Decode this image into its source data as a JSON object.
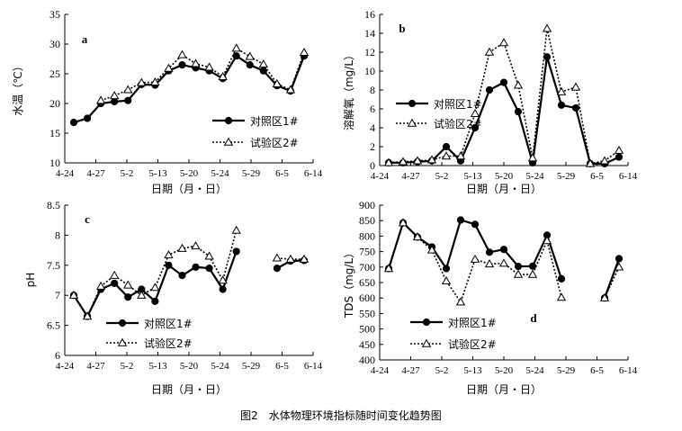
{
  "caption": "图2　水体物理环境指标随时间变化趋势图",
  "chart_data": [
    {
      "id": "a",
      "type": "line",
      "panel_label": "a",
      "xlabel": "日期（月・日）",
      "ylabel": "水温（℃）",
      "ylim": [
        10,
        35
      ],
      "yticks": [
        10,
        15,
        20,
        25,
        30,
        35
      ],
      "xticks": [
        "4-24",
        "4-27",
        "5-2",
        "5-13",
        "5-20",
        "5-24",
        "5-29",
        "6-5",
        "6-14"
      ],
      "legend_position": "middle-right",
      "grid": false,
      "series": [
        {
          "name": "对照区1#",
          "style": "solid",
          "marker": "circle",
          "values": [
            16.8,
            17.5,
            20.0,
            20.3,
            20.5,
            23.2,
            23.1,
            25.5,
            26.5,
            26.0,
            25.5,
            24.2,
            28.0,
            26.5,
            25.5,
            23.0,
            22.1,
            28.0
          ]
        },
        {
          "name": "试验区2#",
          "style": "dotted",
          "marker": "triangle",
          "values": [
            null,
            null,
            20.5,
            21.3,
            22.3,
            23.5,
            23.6,
            25.9,
            28.2,
            26.7,
            26.1,
            24.5,
            29.3,
            27.9,
            26.6,
            23.3,
            22.3,
            28.6
          ]
        }
      ]
    },
    {
      "id": "b",
      "type": "line",
      "panel_label": "b",
      "xlabel": "日期（月・日）",
      "ylabel": "溶解氧（mg/L）",
      "ylim": [
        0,
        16
      ],
      "yticks": [
        0,
        2,
        4,
        6,
        8,
        10,
        12,
        14,
        16
      ],
      "xticks": [
        "4-24",
        "4-27",
        "5-2",
        "5-13",
        "5-20",
        "5-24",
        "5-29",
        "6-5",
        "6-14"
      ],
      "legend_position": "middle-left",
      "grid": false,
      "series": [
        {
          "name": "对照区1#",
          "style": "solid",
          "marker": "circle",
          "values": [
            0.3,
            0.3,
            0.4,
            0.5,
            2.0,
            0.5,
            4.0,
            8.0,
            8.8,
            5.7,
            0.3,
            11.5,
            6.4,
            6.1,
            0.2,
            0.2,
            0.9
          ]
        },
        {
          "name": "试验区2#",
          "style": "dotted",
          "marker": "triangle",
          "values": [
            0.3,
            0.4,
            0.5,
            0.6,
            1.0,
            1.0,
            5.5,
            12.0,
            13.0,
            8.5,
            0.8,
            14.5,
            7.8,
            8.3,
            0.2,
            0.5,
            1.6
          ]
        }
      ]
    },
    {
      "id": "c",
      "type": "line",
      "panel_label": "c",
      "xlabel": "日期（月・日）",
      "ylabel": "pH",
      "ylim": [
        6,
        8.5
      ],
      "yticks": [
        6,
        6.5,
        7,
        7.5,
        8,
        8.5
      ],
      "xticks": [
        "4-24",
        "4-27",
        "5-2",
        "5-13",
        "5-20",
        "5-24",
        "5-29",
        "6-5",
        "6-14"
      ],
      "legend_position": "bottom-left",
      "grid": false,
      "series": [
        {
          "name": "对照区1#",
          "style": "solid",
          "marker": "circle",
          "values": [
            7.0,
            6.65,
            7.1,
            7.2,
            6.97,
            7.1,
            6.9,
            7.5,
            7.33,
            7.47,
            7.45,
            7.1,
            7.73,
            null,
            null,
            7.45,
            7.57,
            7.58
          ]
        },
        {
          "name": "试验区2#",
          "style": "dotted",
          "marker": "triangle",
          "values": [
            7.0,
            6.65,
            7.15,
            7.33,
            7.17,
            7.0,
            7.13,
            7.67,
            7.78,
            7.82,
            7.65,
            7.25,
            8.08,
            null,
            null,
            7.62,
            7.6,
            7.6
          ]
        }
      ]
    },
    {
      "id": "d",
      "type": "line",
      "panel_label": "d",
      "xlabel": "日期（月・日）",
      "ylabel": "TDS（mg/L）",
      "ylim": [
        400,
        900
      ],
      "yticks": [
        400,
        450,
        500,
        550,
        600,
        650,
        700,
        750,
        800,
        850,
        900
      ],
      "xticks": [
        "4-24",
        "4-27",
        "5-2",
        "5-13",
        "5-20",
        "5-24",
        "5-29",
        "6-5",
        "6-14"
      ],
      "legend_position": "bottom-left",
      "grid": false,
      "series": [
        {
          "name": "对照区1#",
          "style": "solid",
          "marker": "circle",
          "values": [
            695,
            843,
            797,
            765,
            695,
            852,
            838,
            748,
            757,
            702,
            703,
            803,
            662,
            null,
            null,
            600,
            727
          ]
        },
        {
          "name": "试验区2#",
          "style": "dotted",
          "marker": "triangle",
          "values": [
            695,
            843,
            797,
            755,
            655,
            587,
            725,
            710,
            712,
            676,
            676,
            785,
            602,
            null,
            null,
            600,
            700
          ]
        }
      ]
    }
  ]
}
